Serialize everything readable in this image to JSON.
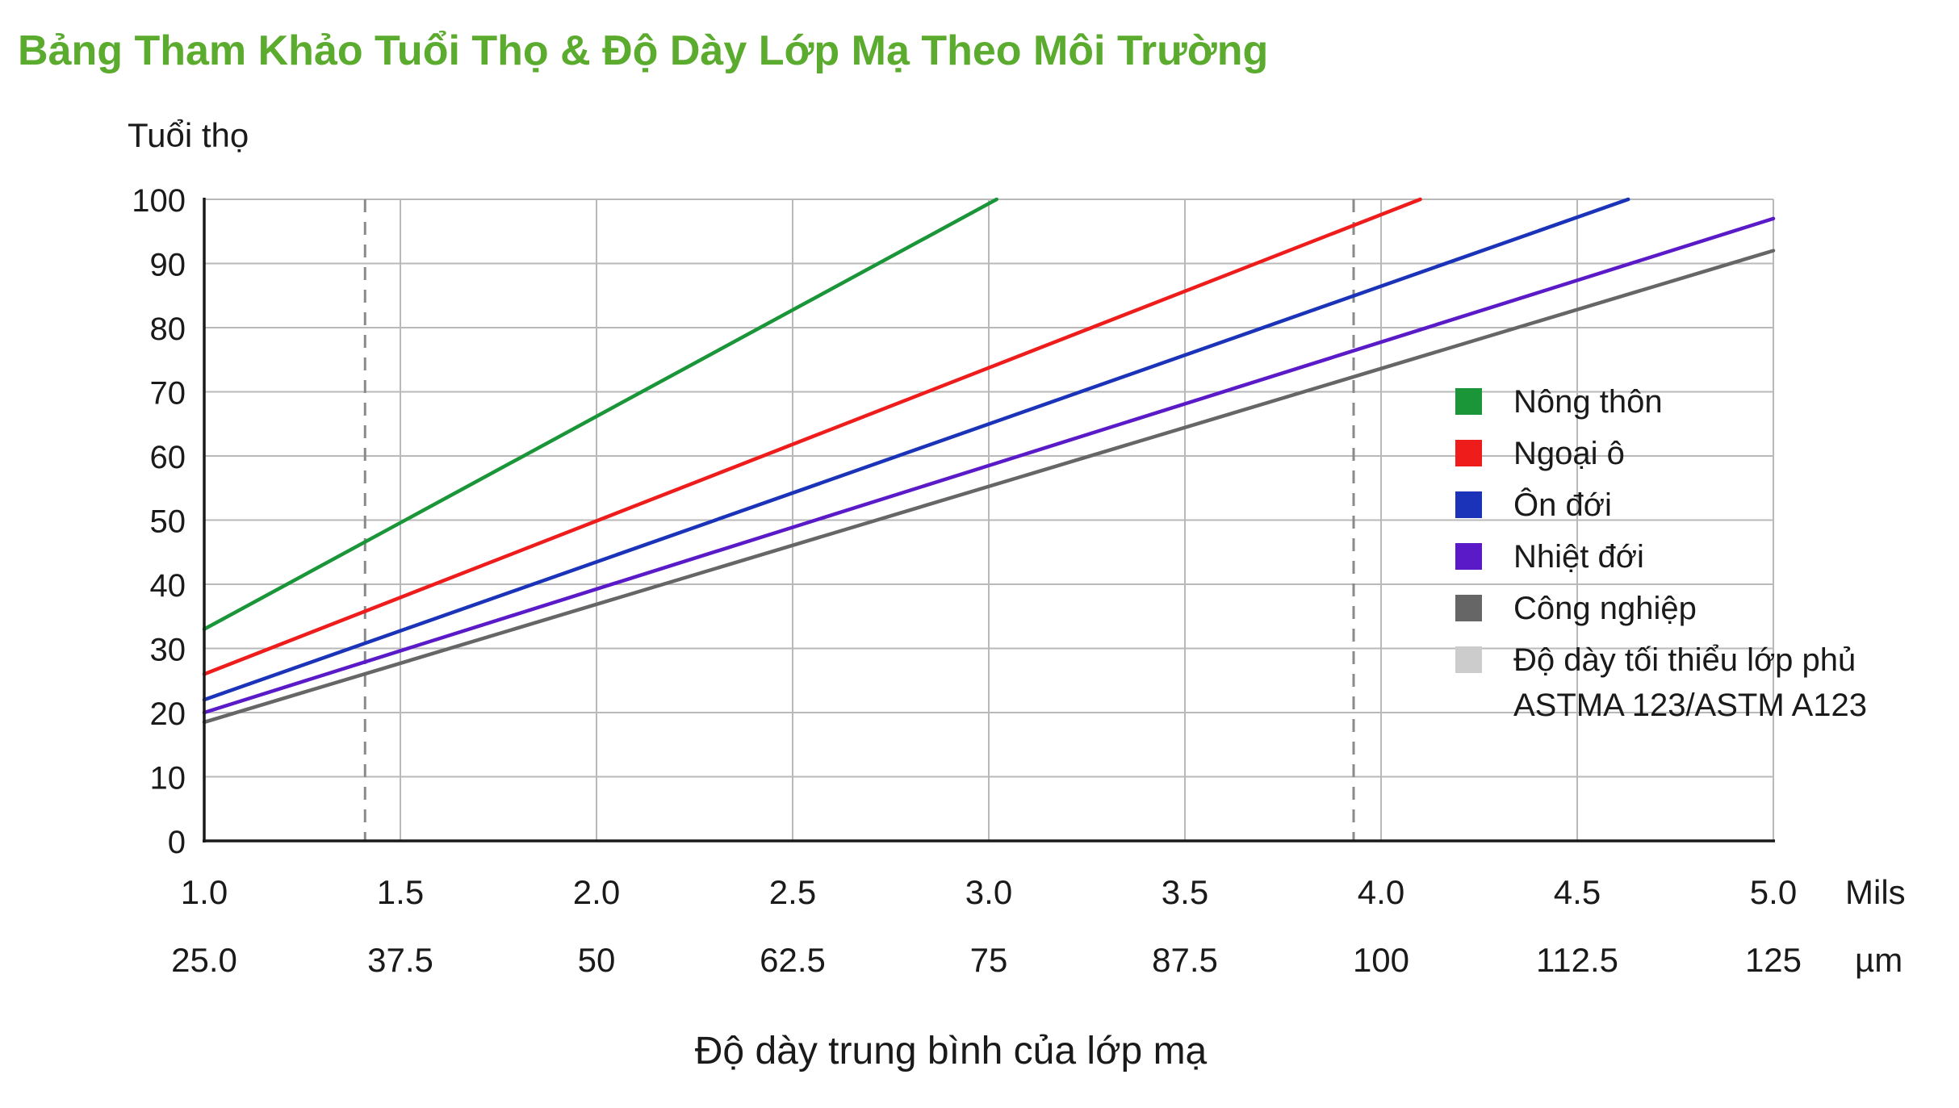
{
  "title": "Bảng Tham Khảo Tuổi Thọ & Độ Dày Lớp Mạ Theo Môi Trường",
  "colors": {
    "title": "#5aab2e",
    "text": "#1a1a1a",
    "grid": "#b9b9b9",
    "axis": "#1a1a1a",
    "reference": "#8a8a8a"
  },
  "chart_data": {
    "type": "line",
    "ylabel": "Tuổi thọ",
    "xlabel": "Độ dày trung bình của lớp mạ",
    "x_unit_primary": "Mils",
    "x_unit_secondary": "µm",
    "xlim": [
      1.0,
      5.0
    ],
    "ylim": [
      0,
      100
    ],
    "grid": true,
    "legend_position": "right",
    "x_ticks": [
      {
        "mils": 1.0,
        "mils_label": "1.0",
        "um_label": "25.0"
      },
      {
        "mils": 1.5,
        "mils_label": "1.5",
        "um_label": "37.5"
      },
      {
        "mils": 2.0,
        "mils_label": "2.0",
        "um_label": "50"
      },
      {
        "mils": 2.5,
        "mils_label": "2.5",
        "um_label": "62.5"
      },
      {
        "mils": 3.0,
        "mils_label": "3.0",
        "um_label": "75"
      },
      {
        "mils": 3.5,
        "mils_label": "3.5",
        "um_label": "87.5"
      },
      {
        "mils": 4.0,
        "mils_label": "4.0",
        "um_label": "100"
      },
      {
        "mils": 4.5,
        "mils_label": "4.5",
        "um_label": "112.5"
      },
      {
        "mils": 5.0,
        "mils_label": "5.0",
        "um_label": "125"
      }
    ],
    "y_ticks": [
      0,
      10,
      20,
      30,
      40,
      50,
      60,
      70,
      80,
      90,
      100
    ],
    "series": [
      {
        "name": "Nông thôn",
        "color": "#1a9639",
        "points": [
          [
            1.0,
            33
          ],
          [
            3.02,
            100
          ]
        ]
      },
      {
        "name": "Ngoại ô",
        "color": "#ef1c1c",
        "points": [
          [
            1.0,
            26
          ],
          [
            4.1,
            100
          ]
        ]
      },
      {
        "name": "Ôn đới",
        "color": "#1a33b8",
        "points": [
          [
            1.0,
            22
          ],
          [
            4.63,
            100
          ]
        ]
      },
      {
        "name": "Nhiệt đới",
        "color": "#5a1ac8",
        "points": [
          [
            1.0,
            20
          ],
          [
            5.0,
            97
          ]
        ]
      },
      {
        "name": "Công nghiệp",
        "color": "#666666",
        "points": [
          [
            1.0,
            18.5
          ],
          [
            5.0,
            92
          ]
        ]
      }
    ],
    "reference_lines": {
      "name": "Độ dày tối thiểu lớp phủ ASTMA 123/ASTM A123",
      "legend_lines": [
        "Độ dày tối thiểu lớp phủ",
        "ASTMA 123/ASTM A123"
      ],
      "color": "#cccccc",
      "x": [
        1.41,
        3.93
      ]
    }
  }
}
